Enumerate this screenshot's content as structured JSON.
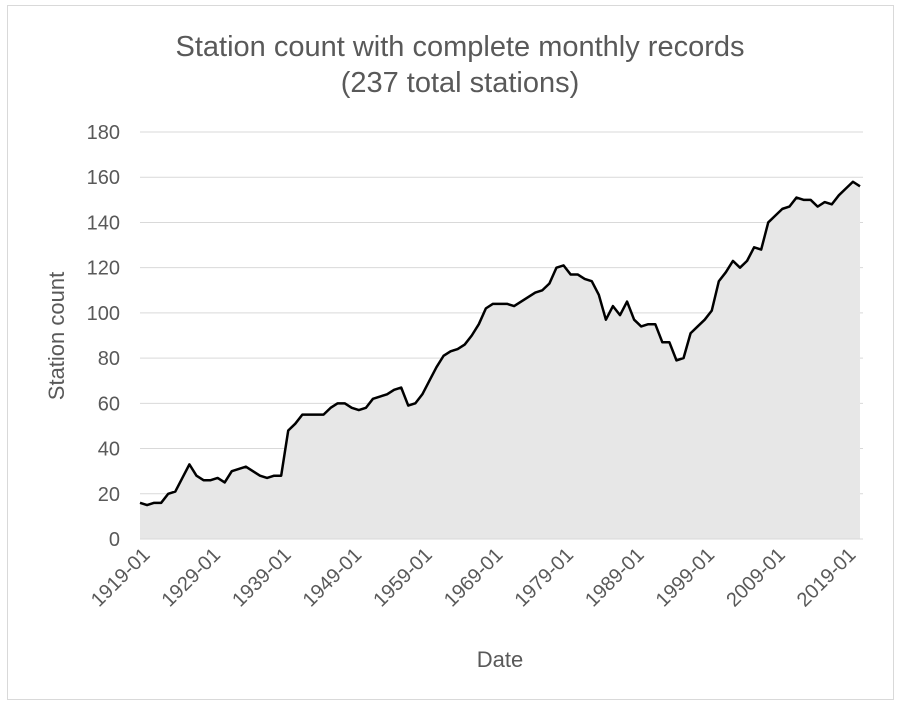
{
  "chart_data": {
    "type": "area",
    "title": "Station count with complete monthly records",
    "subtitle": "(237 total stations)",
    "x_label": "Date",
    "y_label": "Station count",
    "x": [
      "1919-01",
      "1920-01",
      "1921-01",
      "1922-01",
      "1923-01",
      "1924-01",
      "1925-01",
      "1926-01",
      "1927-01",
      "1928-01",
      "1929-01",
      "1930-01",
      "1931-01",
      "1932-01",
      "1933-01",
      "1934-01",
      "1935-01",
      "1936-01",
      "1937-01",
      "1938-01",
      "1939-01",
      "1940-01",
      "1941-01",
      "1942-01",
      "1943-01",
      "1944-01",
      "1945-01",
      "1946-01",
      "1947-01",
      "1948-01",
      "1949-01",
      "1950-01",
      "1951-01",
      "1952-01",
      "1953-01",
      "1954-01",
      "1955-01",
      "1956-01",
      "1957-01",
      "1958-01",
      "1959-01",
      "1960-01",
      "1961-01",
      "1962-01",
      "1963-01",
      "1964-01",
      "1965-01",
      "1966-01",
      "1967-01",
      "1968-01",
      "1969-01",
      "1970-01",
      "1971-01",
      "1972-01",
      "1973-01",
      "1974-01",
      "1975-01",
      "1976-01",
      "1977-01",
      "1978-01",
      "1979-01",
      "1980-01",
      "1981-01",
      "1982-01",
      "1983-01",
      "1984-01",
      "1985-01",
      "1986-01",
      "1987-01",
      "1988-01",
      "1989-01",
      "1990-01",
      "1991-01",
      "1992-01",
      "1993-01",
      "1994-01",
      "1995-01",
      "1996-01",
      "1997-01",
      "1998-01",
      "1999-01",
      "2000-01",
      "2001-01",
      "2002-01",
      "2003-01",
      "2004-01",
      "2005-01",
      "2006-01",
      "2007-01",
      "2008-01",
      "2009-01",
      "2010-01",
      "2011-01",
      "2012-01",
      "2013-01",
      "2014-01",
      "2015-01",
      "2016-01",
      "2017-01",
      "2018-01",
      "2019-01",
      "2020-01",
      "2021-01"
    ],
    "values": [
      16,
      15,
      16,
      16,
      20,
      21,
      27,
      33,
      28,
      26,
      26,
      27,
      25,
      30,
      31,
      32,
      30,
      28,
      27,
      28,
      28,
      48,
      51,
      55,
      55,
      55,
      55,
      58,
      60,
      60,
      58,
      57,
      58,
      62,
      63,
      64,
      66,
      67,
      59,
      60,
      64,
      70,
      76,
      81,
      83,
      84,
      86,
      90,
      95,
      102,
      104,
      104,
      104,
      103,
      105,
      107,
      109,
      110,
      113,
      120,
      121,
      117,
      117,
      115,
      114,
      108,
      97,
      103,
      99,
      105,
      97,
      94,
      95,
      95,
      87,
      87,
      79,
      80,
      91,
      94,
      97,
      101,
      114,
      118,
      123,
      120,
      123,
      129,
      128,
      140,
      143,
      146,
      147,
      151,
      150,
      150,
      147,
      149,
      148,
      152,
      155,
      158,
      156
    ],
    "line_color": "#000000",
    "fill_color": "#e7e7e7",
    "ylim": [
      0,
      180
    ],
    "yticks": [
      0,
      20,
      40,
      60,
      80,
      100,
      120,
      140,
      160,
      180
    ],
    "grid": true
  }
}
